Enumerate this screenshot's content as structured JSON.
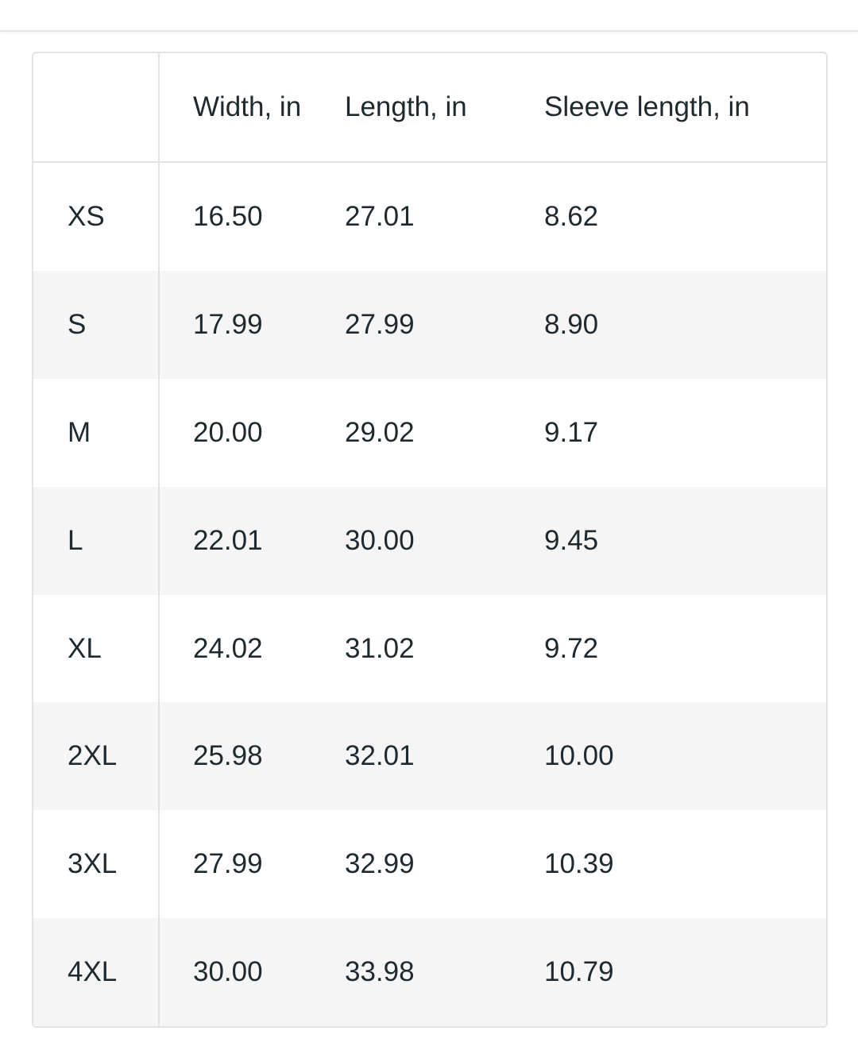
{
  "table": {
    "headers": [
      "",
      "Width, in",
      "Length, in",
      "Sleeve length, in"
    ],
    "rows": [
      [
        "XS",
        "16.50",
        "27.01",
        "8.62"
      ],
      [
        "S",
        "17.99",
        "27.99",
        "8.90"
      ],
      [
        "M",
        "20.00",
        "29.02",
        "9.17"
      ],
      [
        "L",
        "22.01",
        "30.00",
        "9.45"
      ],
      [
        "XL",
        "24.02",
        "31.02",
        "9.72"
      ],
      [
        "2XL",
        "25.98",
        "32.01",
        "10.00"
      ],
      [
        "3XL",
        "27.99",
        "32.99",
        "10.39"
      ],
      [
        "4XL",
        "30.00",
        "33.98",
        "10.79"
      ]
    ]
  }
}
